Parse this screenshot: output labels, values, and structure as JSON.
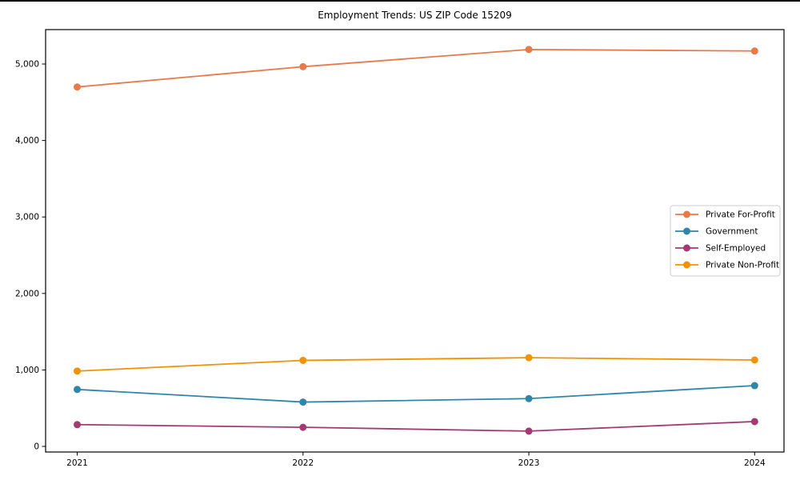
{
  "chart_data": {
    "type": "line",
    "title": "Employment Trends: US ZIP Code 15209",
    "xlabel": "",
    "ylabel": "",
    "x": [
      2021,
      2022,
      2023,
      2024
    ],
    "xtick_labels": [
      "2021",
      "2022",
      "2023",
      "2024"
    ],
    "series": [
      {
        "name": "Private For-Profit",
        "color": "#E8794A",
        "values": [
          4700,
          4965,
          5190,
          5170
        ]
      },
      {
        "name": "Government",
        "color": "#2E86A8",
        "values": [
          745,
          580,
          625,
          795
        ]
      },
      {
        "name": "Self-Employed",
        "color": "#A23B72",
        "values": [
          285,
          250,
          200,
          325
        ]
      },
      {
        "name": "Private Non-Profit",
        "color": "#F39200",
        "values": [
          985,
          1125,
          1160,
          1130
        ]
      }
    ],
    "xlim": [
      2020.86,
      2024.13
    ],
    "ylim": [
      -73,
      5450
    ],
    "yticks": [
      0,
      1000,
      2000,
      3000,
      4000,
      5000
    ],
    "ytick_labels": [
      "0",
      "1,000",
      "2,000",
      "3,000",
      "4,000",
      "5,000"
    ],
    "grid": false,
    "legend_position": "center right",
    "marker": "o",
    "axis_color": "#000000",
    "legend_border_color": "#cccccc"
  }
}
